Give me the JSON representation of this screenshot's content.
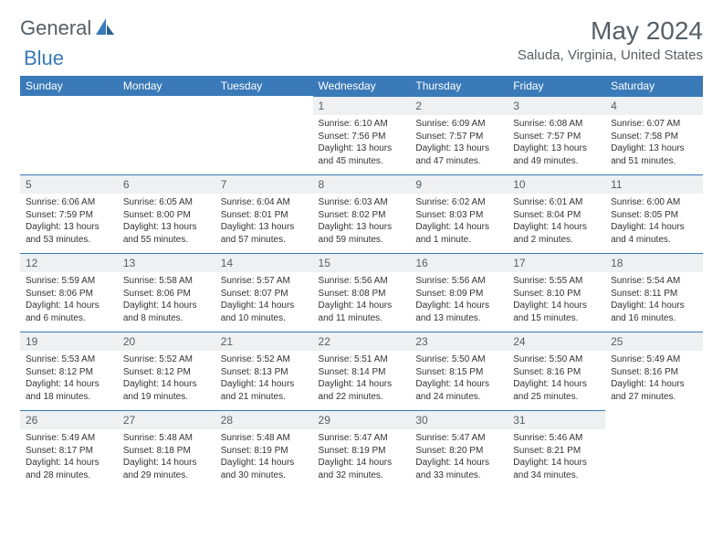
{
  "brand": {
    "part1": "General",
    "part2": "Blue"
  },
  "title": "May 2024",
  "location": "Saluda, Virginia, United States",
  "colors": {
    "header_bg": "#3a7ab8",
    "daynum_bg": "#eef0f2",
    "text": "#555f66"
  },
  "weekdays": [
    "Sunday",
    "Monday",
    "Tuesday",
    "Wednesday",
    "Thursday",
    "Friday",
    "Saturday"
  ],
  "weeks": [
    [
      null,
      null,
      null,
      {
        "n": "1",
        "sr": "6:10 AM",
        "ss": "7:56 PM",
        "d1": "Daylight: 13 hours",
        "d2": "and 45 minutes."
      },
      {
        "n": "2",
        "sr": "6:09 AM",
        "ss": "7:57 PM",
        "d1": "Daylight: 13 hours",
        "d2": "and 47 minutes."
      },
      {
        "n": "3",
        "sr": "6:08 AM",
        "ss": "7:57 PM",
        "d1": "Daylight: 13 hours",
        "d2": "and 49 minutes."
      },
      {
        "n": "4",
        "sr": "6:07 AM",
        "ss": "7:58 PM",
        "d1": "Daylight: 13 hours",
        "d2": "and 51 minutes."
      }
    ],
    [
      {
        "n": "5",
        "sr": "6:06 AM",
        "ss": "7:59 PM",
        "d1": "Daylight: 13 hours",
        "d2": "and 53 minutes."
      },
      {
        "n": "6",
        "sr": "6:05 AM",
        "ss": "8:00 PM",
        "d1": "Daylight: 13 hours",
        "d2": "and 55 minutes."
      },
      {
        "n": "7",
        "sr": "6:04 AM",
        "ss": "8:01 PM",
        "d1": "Daylight: 13 hours",
        "d2": "and 57 minutes."
      },
      {
        "n": "8",
        "sr": "6:03 AM",
        "ss": "8:02 PM",
        "d1": "Daylight: 13 hours",
        "d2": "and 59 minutes."
      },
      {
        "n": "9",
        "sr": "6:02 AM",
        "ss": "8:03 PM",
        "d1": "Daylight: 14 hours",
        "d2": "and 1 minute."
      },
      {
        "n": "10",
        "sr": "6:01 AM",
        "ss": "8:04 PM",
        "d1": "Daylight: 14 hours",
        "d2": "and 2 minutes."
      },
      {
        "n": "11",
        "sr": "6:00 AM",
        "ss": "8:05 PM",
        "d1": "Daylight: 14 hours",
        "d2": "and 4 minutes."
      }
    ],
    [
      {
        "n": "12",
        "sr": "5:59 AM",
        "ss": "8:06 PM",
        "d1": "Daylight: 14 hours",
        "d2": "and 6 minutes."
      },
      {
        "n": "13",
        "sr": "5:58 AM",
        "ss": "8:06 PM",
        "d1": "Daylight: 14 hours",
        "d2": "and 8 minutes."
      },
      {
        "n": "14",
        "sr": "5:57 AM",
        "ss": "8:07 PM",
        "d1": "Daylight: 14 hours",
        "d2": "and 10 minutes."
      },
      {
        "n": "15",
        "sr": "5:56 AM",
        "ss": "8:08 PM",
        "d1": "Daylight: 14 hours",
        "d2": "and 11 minutes."
      },
      {
        "n": "16",
        "sr": "5:56 AM",
        "ss": "8:09 PM",
        "d1": "Daylight: 14 hours",
        "d2": "and 13 minutes."
      },
      {
        "n": "17",
        "sr": "5:55 AM",
        "ss": "8:10 PM",
        "d1": "Daylight: 14 hours",
        "d2": "and 15 minutes."
      },
      {
        "n": "18",
        "sr": "5:54 AM",
        "ss": "8:11 PM",
        "d1": "Daylight: 14 hours",
        "d2": "and 16 minutes."
      }
    ],
    [
      {
        "n": "19",
        "sr": "5:53 AM",
        "ss": "8:12 PM",
        "d1": "Daylight: 14 hours",
        "d2": "and 18 minutes."
      },
      {
        "n": "20",
        "sr": "5:52 AM",
        "ss": "8:12 PM",
        "d1": "Daylight: 14 hours",
        "d2": "and 19 minutes."
      },
      {
        "n": "21",
        "sr": "5:52 AM",
        "ss": "8:13 PM",
        "d1": "Daylight: 14 hours",
        "d2": "and 21 minutes."
      },
      {
        "n": "22",
        "sr": "5:51 AM",
        "ss": "8:14 PM",
        "d1": "Daylight: 14 hours",
        "d2": "and 22 minutes."
      },
      {
        "n": "23",
        "sr": "5:50 AM",
        "ss": "8:15 PM",
        "d1": "Daylight: 14 hours",
        "d2": "and 24 minutes."
      },
      {
        "n": "24",
        "sr": "5:50 AM",
        "ss": "8:16 PM",
        "d1": "Daylight: 14 hours",
        "d2": "and 25 minutes."
      },
      {
        "n": "25",
        "sr": "5:49 AM",
        "ss": "8:16 PM",
        "d1": "Daylight: 14 hours",
        "d2": "and 27 minutes."
      }
    ],
    [
      {
        "n": "26",
        "sr": "5:49 AM",
        "ss": "8:17 PM",
        "d1": "Daylight: 14 hours",
        "d2": "and 28 minutes."
      },
      {
        "n": "27",
        "sr": "5:48 AM",
        "ss": "8:18 PM",
        "d1": "Daylight: 14 hours",
        "d2": "and 29 minutes."
      },
      {
        "n": "28",
        "sr": "5:48 AM",
        "ss": "8:19 PM",
        "d1": "Daylight: 14 hours",
        "d2": "and 30 minutes."
      },
      {
        "n": "29",
        "sr": "5:47 AM",
        "ss": "8:19 PM",
        "d1": "Daylight: 14 hours",
        "d2": "and 32 minutes."
      },
      {
        "n": "30",
        "sr": "5:47 AM",
        "ss": "8:20 PM",
        "d1": "Daylight: 14 hours",
        "d2": "and 33 minutes."
      },
      {
        "n": "31",
        "sr": "5:46 AM",
        "ss": "8:21 PM",
        "d1": "Daylight: 14 hours",
        "d2": "and 34 minutes."
      },
      null
    ]
  ]
}
